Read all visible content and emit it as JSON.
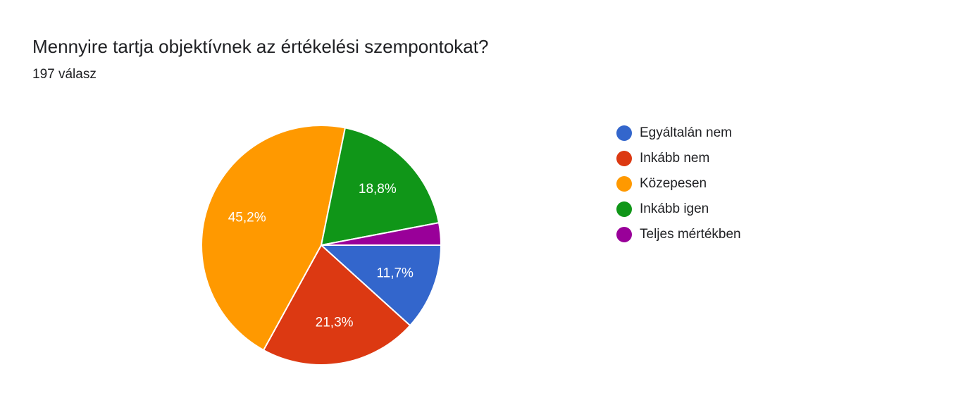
{
  "chart_data": {
    "type": "pie",
    "title": "Mennyire tartja objektívnek az értékelési szempontokat?",
    "subtitle": "197 válasz",
    "categories": [
      "Egyáltalán nem",
      "Inkább nem",
      "Közepesen",
      "Inkább igen",
      "Teljes mértékben"
    ],
    "values": [
      11.7,
      21.3,
      45.2,
      18.8,
      3.0
    ],
    "value_labels": [
      "11,7%",
      "21,3%",
      "45,2%",
      "18,8%",
      null
    ],
    "colors": [
      "#3366cc",
      "#dc3912",
      "#ff9900",
      "#109618",
      "#990099"
    ],
    "legend": "right"
  }
}
